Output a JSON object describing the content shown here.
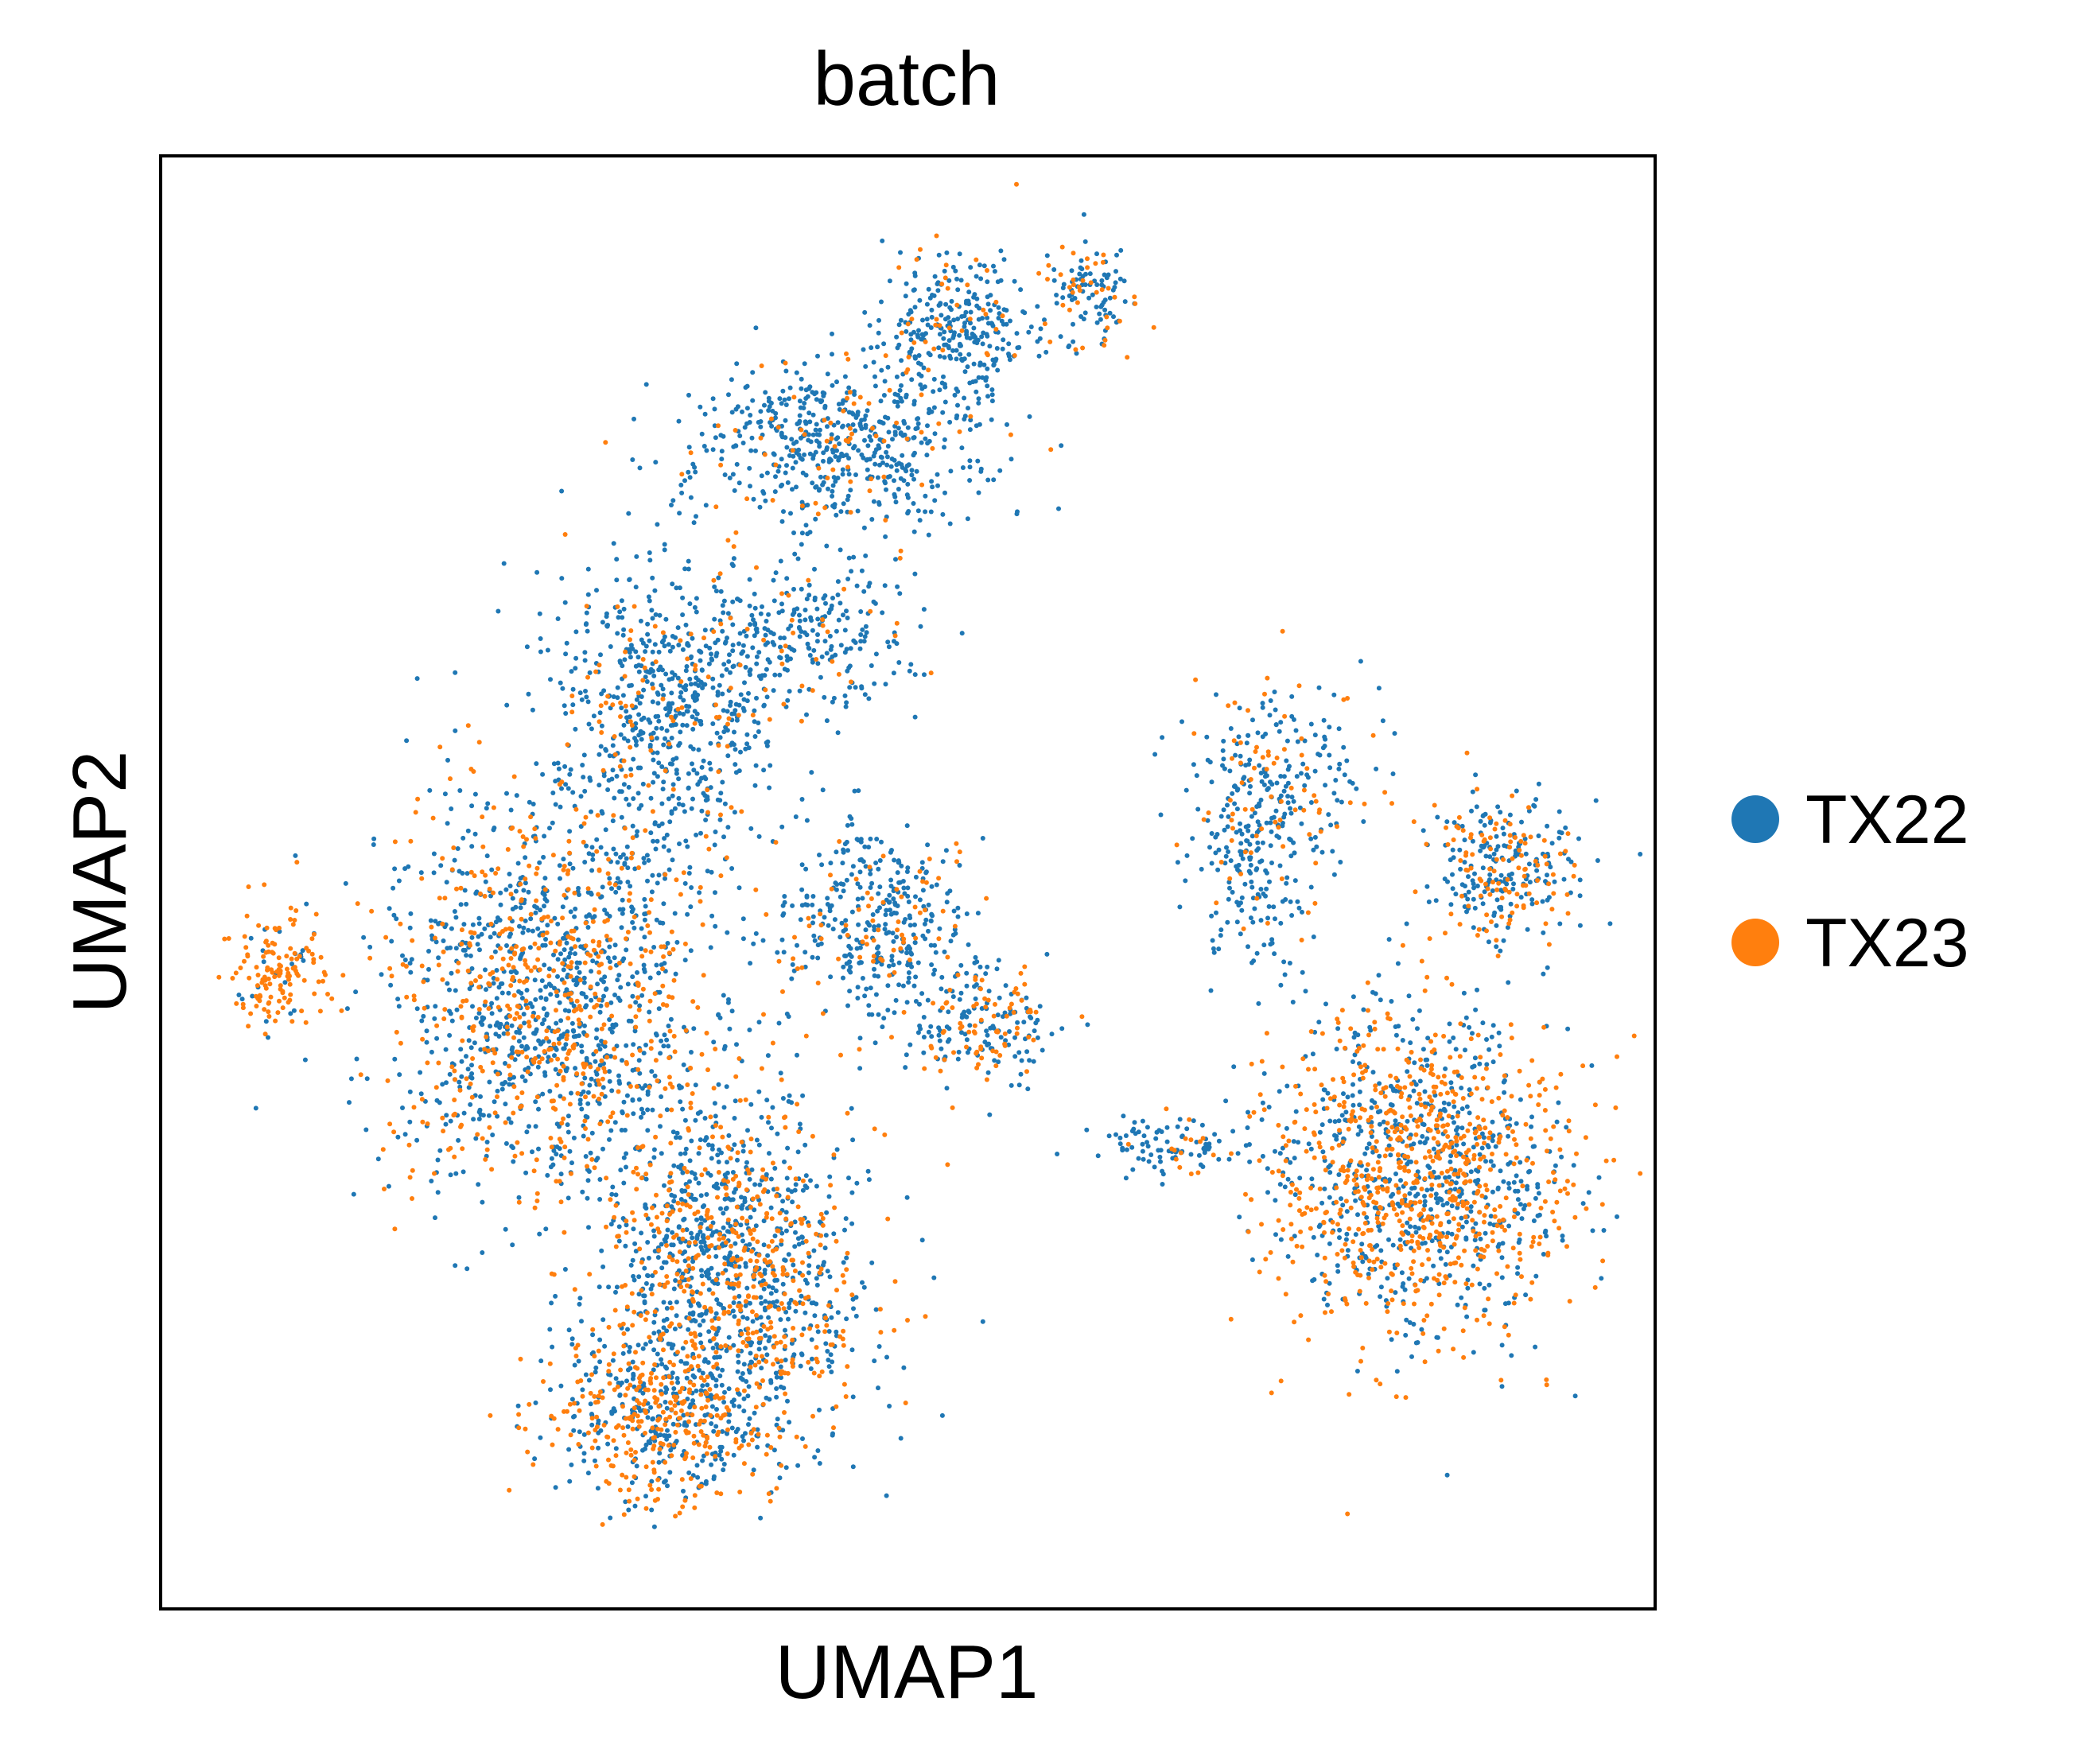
{
  "chart_data": {
    "type": "scatter",
    "title": "batch",
    "xlabel": "UMAP1",
    "ylabel": "UMAP2",
    "xlim": [
      0,
      100
    ],
    "ylim": [
      0,
      100
    ],
    "grid": false,
    "ticks": false,
    "legend_position": "right",
    "series": [
      {
        "name": "TX22",
        "color": "#1f77b4"
      },
      {
        "name": "TX23",
        "color": "#ff7f0e"
      }
    ],
    "clusters": [
      {
        "cx": 26,
        "cy": 42,
        "rx": 11,
        "ry": 14,
        "n": 1500,
        "p23": 0.38
      },
      {
        "cx": 38,
        "cy": 23,
        "rx": 9,
        "ry": 12,
        "n": 1300,
        "p23": 0.4
      },
      {
        "cx": 33,
        "cy": 13,
        "rx": 7,
        "ry": 6,
        "n": 500,
        "p23": 0.55
      },
      {
        "cx": 8,
        "cy": 44,
        "rx": 3,
        "ry": 4,
        "n": 150,
        "p23": 0.85
      },
      {
        "cx": 34,
        "cy": 62,
        "rx": 8,
        "ry": 10,
        "n": 700,
        "p23": 0.12
      },
      {
        "cx": 46,
        "cy": 80,
        "rx": 10,
        "ry": 6,
        "n": 600,
        "p23": 0.12
      },
      {
        "cx": 53,
        "cy": 88,
        "rx": 5,
        "ry": 5,
        "n": 300,
        "p23": 0.15
      },
      {
        "cx": 62,
        "cy": 90,
        "rx": 3,
        "ry": 4,
        "n": 120,
        "p23": 0.3
      },
      {
        "cx": 43,
        "cy": 67,
        "rx": 8,
        "ry": 5,
        "n": 250,
        "p23": 0.08
      },
      {
        "cx": 48,
        "cy": 47,
        "rx": 6,
        "ry": 6,
        "n": 400,
        "p23": 0.18
      },
      {
        "cx": 55,
        "cy": 40,
        "rx": 5,
        "ry": 4,
        "n": 200,
        "p23": 0.35
      },
      {
        "cx": 84,
        "cy": 30,
        "rx": 10,
        "ry": 11,
        "n": 1400,
        "p23": 0.52
      },
      {
        "cx": 90,
        "cy": 51,
        "rx": 5,
        "ry": 5,
        "n": 300,
        "p23": 0.4
      },
      {
        "cx": 73,
        "cy": 52,
        "rx": 4,
        "ry": 8,
        "n": 220,
        "p23": 0.12
      },
      {
        "cx": 68,
        "cy": 32,
        "rx": 6,
        "ry": 2,
        "n": 100,
        "p23": 0.15
      },
      {
        "cx": 75,
        "cy": 58,
        "rx": 6,
        "ry": 6,
        "n": 180,
        "p23": 0.3
      }
    ]
  }
}
